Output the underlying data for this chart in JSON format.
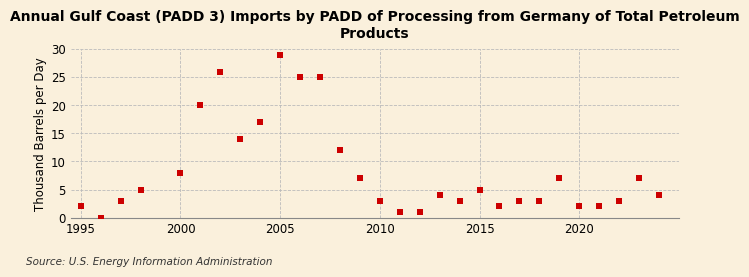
{
  "title": "Annual Gulf Coast (PADD 3) Imports by PADD of Processing from Germany of Total Petroleum\nProducts",
  "ylabel": "Thousand Barrels per Day",
  "source": "Source: U.S. Energy Information Administration",
  "background_color": "#faf0dc",
  "marker_color": "#cc0000",
  "years": [
    1995,
    1996,
    1997,
    1998,
    2000,
    2001,
    2002,
    2003,
    2004,
    2005,
    2006,
    2007,
    2008,
    2009,
    2010,
    2011,
    2012,
    2013,
    2014,
    2015,
    2016,
    2017,
    2018,
    2019,
    2020,
    2021,
    2022,
    2023,
    2024
  ],
  "values": [
    2,
    0,
    3,
    5,
    8,
    20,
    26,
    14,
    17,
    29,
    25,
    25,
    12,
    7,
    3,
    1,
    1,
    4,
    3,
    5,
    2,
    3,
    3,
    7,
    2,
    2,
    3,
    7,
    4
  ],
  "xlim": [
    1994.5,
    2025
  ],
  "ylim": [
    0,
    30
  ],
  "yticks": [
    0,
    5,
    10,
    15,
    20,
    25,
    30
  ],
  "xticks": [
    1995,
    2000,
    2005,
    2010,
    2015,
    2020
  ],
  "grid_color": "#bbbbbb",
  "title_fontsize": 10,
  "axis_fontsize": 8.5,
  "source_fontsize": 7.5,
  "tick_fontsize": 8.5
}
